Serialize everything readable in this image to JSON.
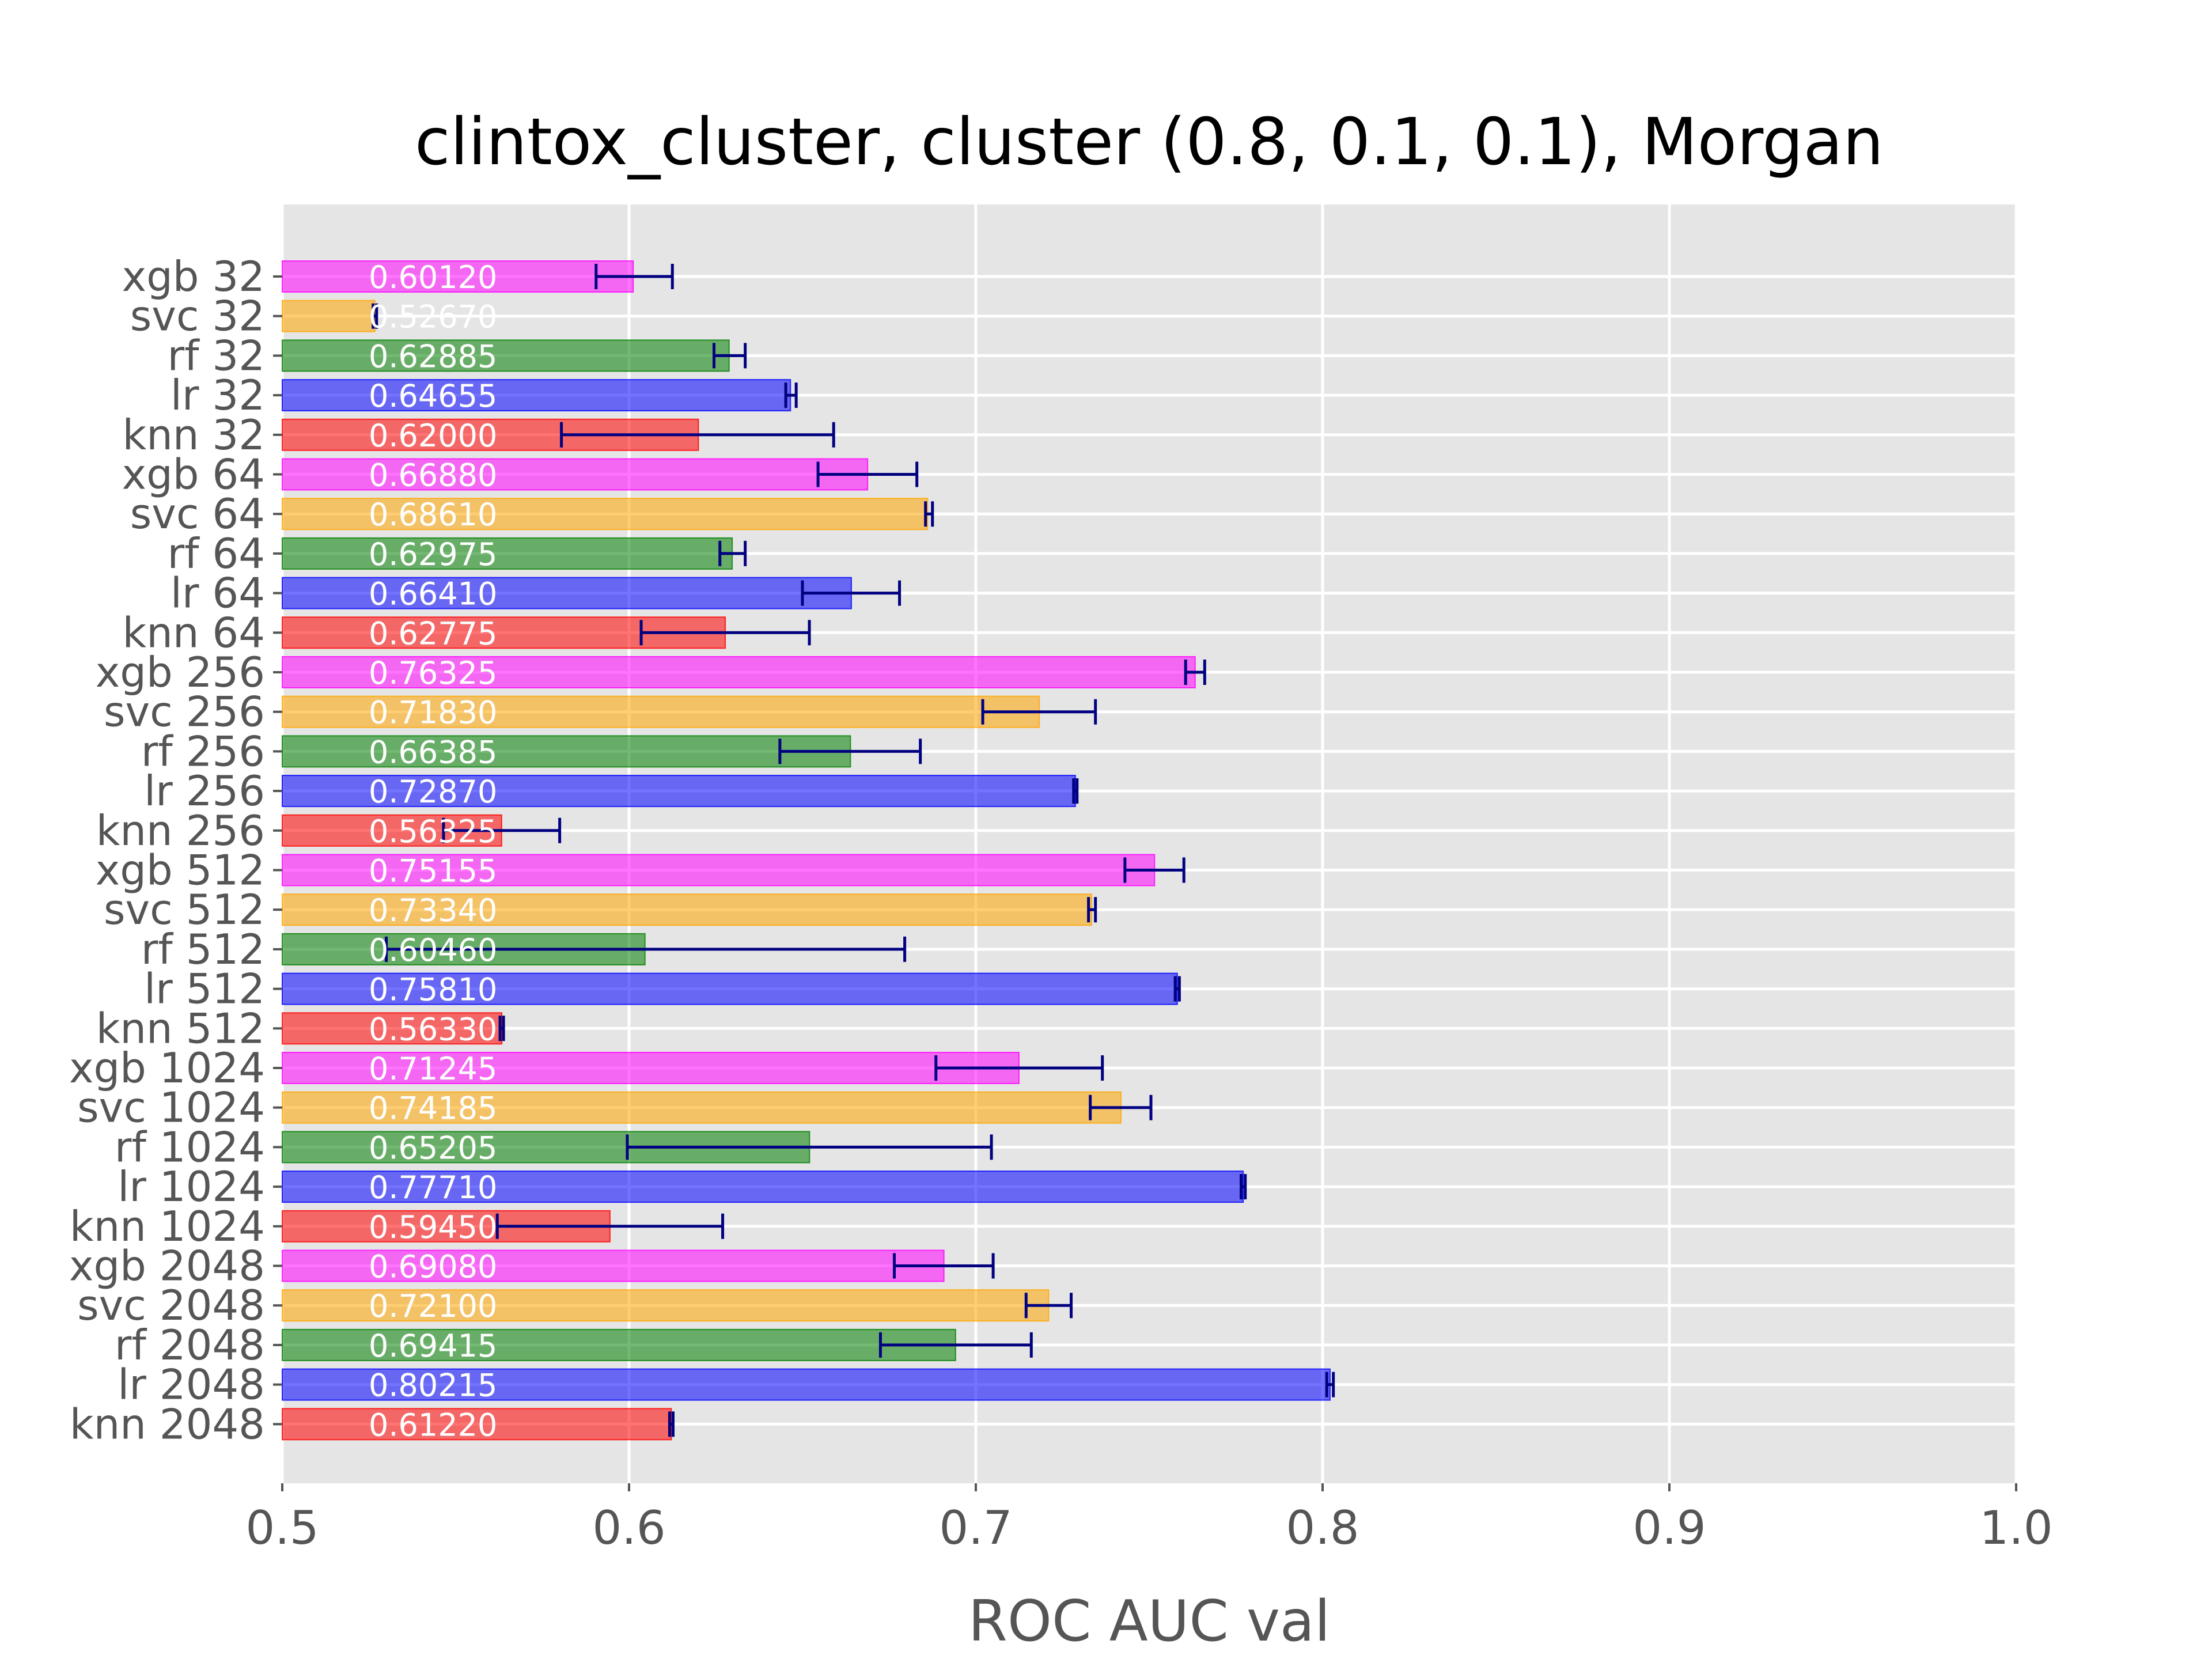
{
  "chart_data": {
    "type": "bar",
    "orientation": "horizontal",
    "title": "clintox_cluster, cluster (0.8, 0.1, 0.1), Morgan",
    "xlabel": "ROC AUC val",
    "ylabel": "",
    "xlim": [
      0.5,
      1.0
    ],
    "xticks": [
      "0.5",
      "0.6",
      "0.7",
      "0.8",
      "0.9",
      "1.0"
    ],
    "grid": true,
    "background": "#e5e5e5",
    "error_bar_color": "#000080",
    "model_colors": {
      "xgb": "#ff00ff",
      "svc": "#ffa500",
      "rf": "#008000",
      "lr": "#0000ff",
      "knn": "#ff0000"
    },
    "bars": [
      {
        "category": "xgb 32",
        "model": "xgb",
        "value": 0.6012,
        "label": "0.60120",
        "err": [
          0.5905,
          0.6125
        ]
      },
      {
        "category": "svc 32",
        "model": "svc",
        "value": 0.5267,
        "label": "0.52670",
        "err": [
          0.5262,
          0.5272
        ]
      },
      {
        "category": "rf 32",
        "model": "rf",
        "value": 0.62885,
        "label": "0.62885",
        "err": [
          0.6245,
          0.6335
        ]
      },
      {
        "category": "lr 32",
        "model": "lr",
        "value": 0.64655,
        "label": "0.64655",
        "err": [
          0.6452,
          0.6482
        ]
      },
      {
        "category": "knn 32",
        "model": "knn",
        "value": 0.62,
        "label": "0.62000",
        "err": [
          0.5805,
          0.659
        ]
      },
      {
        "category": "xgb 64",
        "model": "xgb",
        "value": 0.6688,
        "label": "0.66880",
        "err": [
          0.6545,
          0.683
        ]
      },
      {
        "category": "svc 64",
        "model": "svc",
        "value": 0.6861,
        "label": "0.68610",
        "err": [
          0.6855,
          0.6875
        ]
      },
      {
        "category": "rf 64",
        "model": "rf",
        "value": 0.62975,
        "label": "0.62975",
        "err": [
          0.6262,
          0.6335
        ]
      },
      {
        "category": "lr 64",
        "model": "lr",
        "value": 0.6641,
        "label": "0.66410",
        "err": [
          0.65,
          0.678
        ]
      },
      {
        "category": "knn 64",
        "model": "knn",
        "value": 0.62775,
        "label": "0.62775",
        "err": [
          0.6035,
          0.652
        ]
      },
      {
        "category": "xgb 256",
        "model": "xgb",
        "value": 0.76325,
        "label": "0.76325",
        "err": [
          0.7605,
          0.766
        ]
      },
      {
        "category": "svc 256",
        "model": "svc",
        "value": 0.7183,
        "label": "0.71830",
        "err": [
          0.702,
          0.7345
        ]
      },
      {
        "category": "rf 256",
        "model": "rf",
        "value": 0.66385,
        "label": "0.66385",
        "err": [
          0.6435,
          0.684
        ]
      },
      {
        "category": "lr 256",
        "model": "lr",
        "value": 0.7287,
        "label": "0.72870",
        "err": [
          0.7282,
          0.7292
        ]
      },
      {
        "category": "knn 256",
        "model": "knn",
        "value": 0.56325,
        "label": "0.56325",
        "err": [
          0.5465,
          0.58
        ]
      },
      {
        "category": "xgb 512",
        "model": "xgb",
        "value": 0.75155,
        "label": "0.75155",
        "err": [
          0.743,
          0.76
        ]
      },
      {
        "category": "svc 512",
        "model": "svc",
        "value": 0.7334,
        "label": "0.73340",
        "err": [
          0.7325,
          0.7345
        ]
      },
      {
        "category": "rf 512",
        "model": "rf",
        "value": 0.6046,
        "label": "0.60460",
        "err": [
          0.53,
          0.6795
        ]
      },
      {
        "category": "lr 512",
        "model": "lr",
        "value": 0.7581,
        "label": "0.75810",
        "err": [
          0.7575,
          0.7587
        ]
      },
      {
        "category": "knn 512",
        "model": "knn",
        "value": 0.5633,
        "label": "0.56330",
        "err": [
          0.5628,
          0.5638
        ]
      },
      {
        "category": "xgb 1024",
        "model": "xgb",
        "value": 0.71245,
        "label": "0.71245",
        "err": [
          0.6885,
          0.7365
        ]
      },
      {
        "category": "svc 1024",
        "model": "svc",
        "value": 0.74185,
        "label": "0.74185",
        "err": [
          0.733,
          0.7505
        ]
      },
      {
        "category": "rf 1024",
        "model": "rf",
        "value": 0.65205,
        "label": "0.65205",
        "err": [
          0.5995,
          0.7045
        ]
      },
      {
        "category": "lr 1024",
        "model": "lr",
        "value": 0.7771,
        "label": "0.77710",
        "err": [
          0.7765,
          0.7777
        ]
      },
      {
        "category": "knn 1024",
        "model": "knn",
        "value": 0.5945,
        "label": "0.59450",
        "err": [
          0.562,
          0.627
        ]
      },
      {
        "category": "xgb 2048",
        "model": "xgb",
        "value": 0.6908,
        "label": "0.69080",
        "err": [
          0.6765,
          0.705
        ]
      },
      {
        "category": "svc 2048",
        "model": "svc",
        "value": 0.721,
        "label": "0.72100",
        "err": [
          0.7145,
          0.7275
        ]
      },
      {
        "category": "rf 2048",
        "model": "rf",
        "value": 0.69415,
        "label": "0.69415",
        "err": [
          0.6725,
          0.716
        ]
      },
      {
        "category": "lr 2048",
        "model": "lr",
        "value": 0.80215,
        "label": "0.80215",
        "err": [
          0.8012,
          0.8031
        ]
      },
      {
        "category": "knn 2048",
        "model": "knn",
        "value": 0.6122,
        "label": "0.61220",
        "err": [
          0.6117,
          0.6127
        ]
      }
    ]
  }
}
